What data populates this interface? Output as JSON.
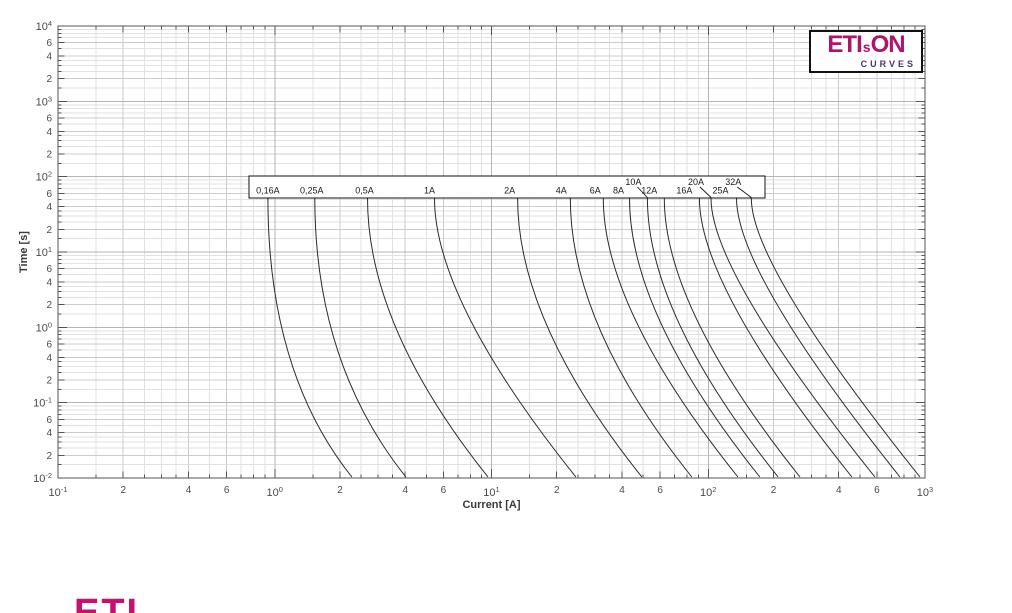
{
  "etison_logo": {
    "part1": "ETI",
    "part2": "s",
    "part3": "ON",
    "subtitle": "CURVES",
    "main_color": "#b1136b",
    "subtitle_color": "#4a3473"
  },
  "footer_logo": {
    "text": "ETI",
    "color": "#c60f6e"
  },
  "chart_data": {
    "type": "line",
    "title": "",
    "xlabel": "Current [A]",
    "ylabel": "Time [s]",
    "x_log_range": [
      -1,
      3
    ],
    "y_log_range": [
      -2,
      4
    ],
    "x_major_exponents": [
      -1,
      0,
      1,
      2,
      3
    ],
    "y_major_exponents": [
      4,
      3,
      2,
      1,
      0,
      -1,
      -2
    ],
    "x_minor_labeled_values": [
      2,
      4,
      6
    ],
    "y_minor_labeled_values": [
      6,
      4,
      2
    ],
    "minor_unlabeled_values": [
      1.5,
      2.5,
      3,
      3.5,
      5,
      7,
      8,
      9
    ],
    "grid": true,
    "axis_color": "#4a4a4a",
    "curve_color": "#2b2b2b",
    "t_start": 52,
    "t_end": 0.01,
    "curves": [
      {
        "label": "0,16A",
        "row": "bottom",
        "label_dx": 0,
        "i_start": 0.93,
        "i_end": 2.27
      },
      {
        "label": "0,25A",
        "row": "bottom",
        "label_dx": -3,
        "i_start": 1.53,
        "i_end": 4.03
      },
      {
        "label": "0,5A",
        "row": "bottom",
        "label_dx": -3,
        "i_start": 2.68,
        "i_end": 9.64
      },
      {
        "label": "1A",
        "row": "bottom",
        "label_dx": -5,
        "i_start": 5.46,
        "i_end": 24.5
      },
      {
        "label": "2A",
        "row": "bottom",
        "label_dx": -8,
        "i_start": 13.2,
        "i_end": 49.4
      },
      {
        "label": "4A",
        "row": "bottom",
        "label_dx": -9,
        "i_start": 23.1,
        "i_end": 84
      },
      {
        "label": "6A",
        "row": "bottom",
        "label_dx": -8,
        "i_start": 32.8,
        "i_end": 137
      },
      {
        "label": "8A",
        "row": "bottom",
        "label_dx": -11,
        "i_start": 43.3,
        "i_end": 173
      },
      {
        "label": "10A",
        "row": "top",
        "label_dx": -14,
        "i_start": 52.4,
        "i_end": 210,
        "leader": true
      },
      {
        "label": "12A",
        "row": "bottom",
        "label_dx": -15,
        "i_start": 62.7,
        "i_end": 265
      },
      {
        "label": "16A",
        "row": "bottom",
        "label_dx": -15,
        "i_start": 91,
        "i_end": 460
      },
      {
        "label": "20A",
        "row": "top",
        "label_dx": -15,
        "i_start": 103,
        "i_end": 587,
        "leader": true
      },
      {
        "label": "25A",
        "row": "bottom",
        "label_dx": -16,
        "i_start": 135,
        "i_end": 767
      },
      {
        "label": "32A",
        "row": "top",
        "label_dx": -18,
        "i_start": 158,
        "i_end": 948,
        "leader": true
      }
    ]
  }
}
